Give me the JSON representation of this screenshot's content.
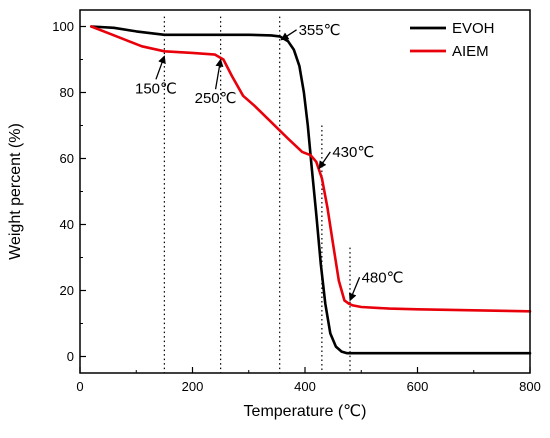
{
  "chart_data": {
    "type": "line",
    "xlabel": "Temperature (℃)",
    "ylabel": "Weight percent (%)",
    "xlim": [
      0,
      800
    ],
    "ylim": [
      -5,
      105
    ],
    "xticks": [
      0,
      200,
      400,
      600,
      800
    ],
    "yticks": [
      0,
      20,
      40,
      60,
      80,
      100
    ],
    "grid": false,
    "legend_position": "top-right",
    "series": [
      {
        "name": "EVOH",
        "color": "#000000",
        "x": [
          20,
          60,
          100,
          150,
          200,
          250,
          300,
          340,
          355,
          370,
          380,
          390,
          398,
          405,
          412,
          420,
          428,
          436,
          445,
          455,
          465,
          475,
          490,
          520,
          600,
          700,
          800
        ],
        "y": [
          100,
          99.6,
          98.5,
          97.5,
          97.5,
          97.5,
          97.5,
          97.3,
          97,
          95.5,
          93,
          88,
          80,
          70,
          57,
          43,
          28,
          16,
          7,
          3,
          1.5,
          1,
          1,
          1,
          1,
          1,
          1
        ]
      },
      {
        "name": "AIEM",
        "color": "#e8000b",
        "x": [
          20,
          50,
          80,
          110,
          150,
          200,
          240,
          255,
          270,
          290,
          310,
          340,
          370,
          395,
          410,
          420,
          430,
          440,
          450,
          460,
          470,
          478,
          485,
          500,
          550,
          600,
          700,
          800
        ],
        "y": [
          100,
          98,
          96,
          94,
          92.5,
          92,
          91.5,
          90,
          85,
          79,
          76,
          71,
          66,
          62,
          61,
          59,
          54,
          45,
          34,
          23,
          17,
          16,
          15.5,
          15,
          14.5,
          14.3,
          14,
          13.7
        ]
      }
    ],
    "annotations": [
      {
        "label": "150℃",
        "x": 150,
        "line_top": 103,
        "arrow_from": [
          135,
          84
        ],
        "arrow_to": [
          150,
          91
        ]
      },
      {
        "label": "250℃",
        "x": 250,
        "line_top": 103,
        "arrow_from": [
          241,
          81
        ],
        "arrow_to": [
          250,
          90
        ]
      },
      {
        "label": "355℃",
        "x": 355,
        "line_top": 103,
        "arrow_from": [
          385,
          99
        ],
        "arrow_to": [
          358,
          96
        ]
      },
      {
        "label": "430℃",
        "x": 430,
        "line_top": 70,
        "arrow_from": [
          445,
          62
        ],
        "arrow_to": [
          425,
          57
        ]
      },
      {
        "label": "480℃",
        "x": 480,
        "line_top": 33,
        "arrow_from": [
          497,
          24
        ],
        "arrow_to": [
          480,
          17
        ]
      }
    ]
  }
}
